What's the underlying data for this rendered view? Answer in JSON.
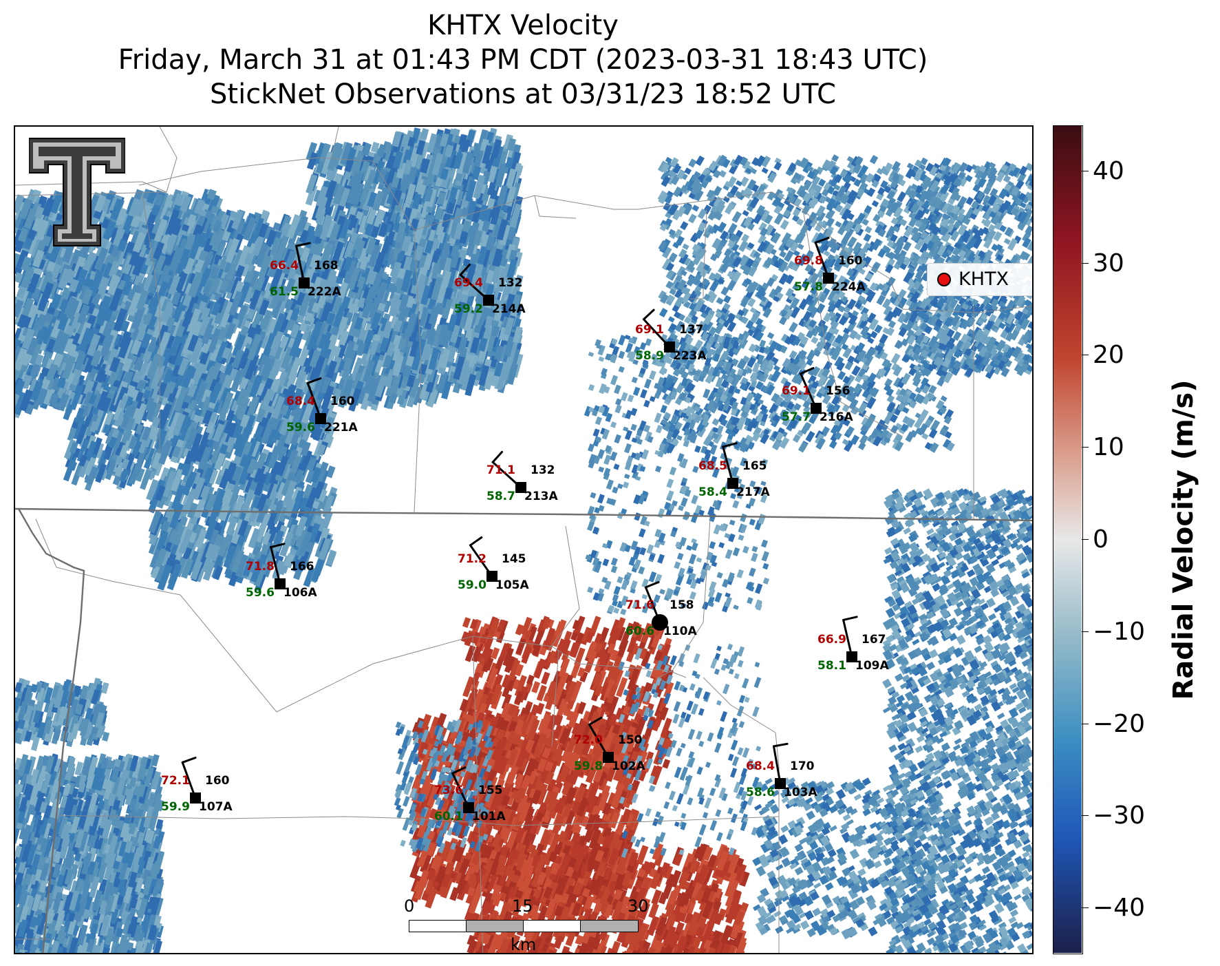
{
  "title": {
    "line1": "KHTX Velocity",
    "line2": "Friday, March 31 at 01:43 PM CDT (2023-03-31 18:43 UTC)",
    "line3": "StickNet Observations at 03/31/23 18:52 UTC"
  },
  "legend": {
    "label": "KHTX"
  },
  "colorbar": {
    "label": "Radial Velocity (m/s)",
    "min": -45,
    "max": 45,
    "ticks": [
      "40",
      "30",
      "20",
      "10",
      "0",
      "−10",
      "−20",
      "−30",
      "−40"
    ],
    "tick_values": [
      40,
      30,
      20,
      10,
      0,
      -10,
      -20,
      -30,
      -40
    ],
    "colors": [
      "#1c1f4a",
      "#1f58b8",
      "#3d8fc2",
      "#93b9c8",
      "#e8e8e8",
      "#dba08f",
      "#c0452e",
      "#8f1622",
      "#3a0d12"
    ]
  },
  "scalebar": {
    "labels": [
      "0",
      "15",
      "30"
    ],
    "unit": "km"
  },
  "logo": {
    "name": "texas-tech-double-t-logo"
  },
  "stations": [
    {
      "id": "222A",
      "temp": "66.4",
      "dew": "61.5",
      "dir": "168"
    },
    {
      "id": "214A",
      "temp": "69.4",
      "dew": "59.2",
      "dir": "132"
    },
    {
      "id": "224A",
      "temp": "69.8",
      "dew": "57.8",
      "dir": "160"
    },
    {
      "id": "223A",
      "temp": "69.1",
      "dew": "58.9",
      "dir": "137"
    },
    {
      "id": "216A",
      "temp": "69.1",
      "dew": "57.7",
      "dir": "156"
    },
    {
      "id": "221A",
      "temp": "68.4",
      "dew": "59.6",
      "dir": "160"
    },
    {
      "id": "213A",
      "temp": "71.1",
      "dew": "58.7",
      "dir": "132"
    },
    {
      "id": "217A",
      "temp": "68.5",
      "dew": "58.4",
      "dir": "165"
    },
    {
      "id": "106A",
      "temp": "71.8",
      "dew": "59.6",
      "dir": "166"
    },
    {
      "id": "105A",
      "temp": "71.2",
      "dew": "59.0",
      "dir": "145"
    },
    {
      "id": "110A",
      "temp": "71.6",
      "dew": "60.6",
      "dir": "158"
    },
    {
      "id": "109A",
      "temp": "66.9",
      "dew": "58.1",
      "dir": "167"
    },
    {
      "id": "102A",
      "temp": "72.0",
      "dew": "59.8",
      "dir": "150"
    },
    {
      "id": "103A",
      "temp": "68.4",
      "dew": "58.6",
      "dir": "170"
    },
    {
      "id": "107A",
      "temp": "72.1",
      "dew": "59.9",
      "dir": "160"
    },
    {
      "id": "101A",
      "temp": "73.6",
      "dew": "60.1",
      "dir": "155"
    }
  ]
}
